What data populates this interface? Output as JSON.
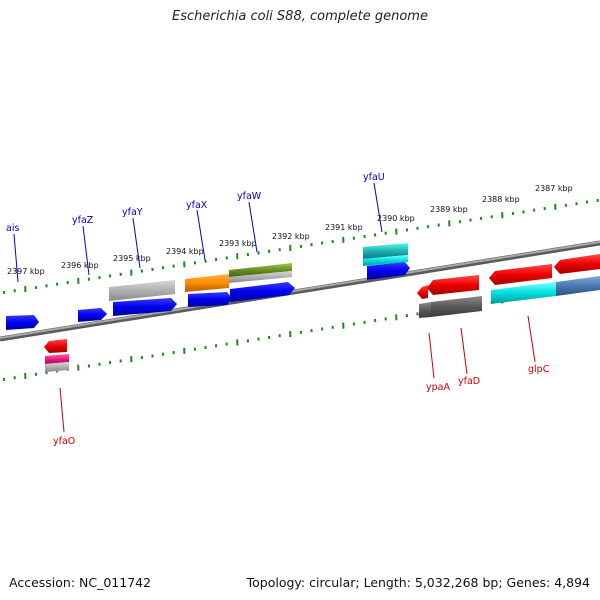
{
  "title": "Escherichia coli S88, complete genome",
  "footer": {
    "accession": "Accession: NC_011742",
    "topology": "Topology: circular; Length: 5,032,268 bp; Genes: 4,894"
  },
  "colors": {
    "forward_label": "#0000cc",
    "reverse_label": "#cc0000",
    "tick": "#1a8a1a",
    "backbone": "#808080"
  },
  "kbp_labels": [
    "2397 kbp",
    "2396 kbp",
    "2395 kbp",
    "2394 kbp",
    "2393 kbp",
    "2392 kbp",
    "2391 kbp",
    "2390 kbp",
    "2389 kbp",
    "2388 kbp",
    "2387 kbp"
  ],
  "forward_genes": [
    "ais",
    "yfaZ",
    "yfaY",
    "yfaX",
    "yfaW",
    "yfaU"
  ],
  "reverse_genes": [
    "yfaO",
    "ypaA",
    "yfaD",
    "glpC"
  ]
}
